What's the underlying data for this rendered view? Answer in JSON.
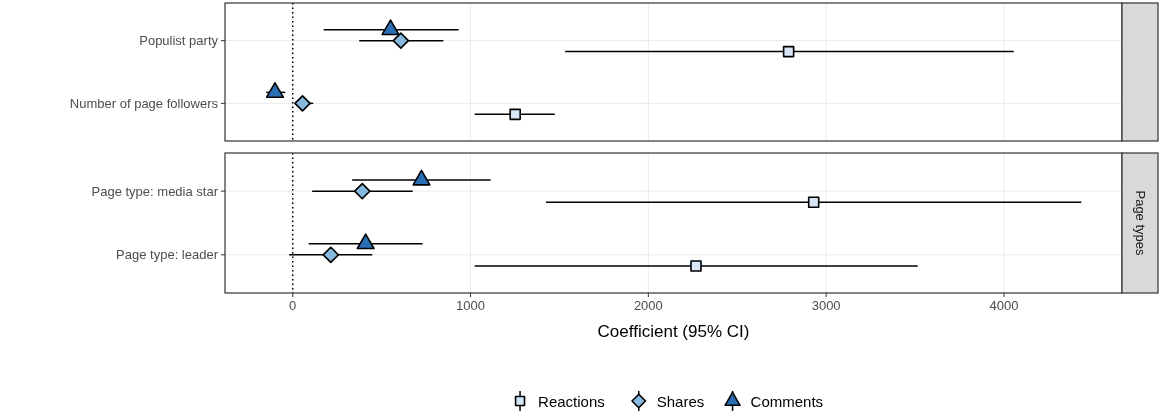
{
  "chart_data": [
    {
      "type": "scatter",
      "orientation": "horizontal",
      "categories": [
        "Populist party",
        "Number of page followers"
      ],
      "xlim": [
        -381,
        4664
      ],
      "xticks": [
        0,
        1000,
        2000,
        3000,
        4000
      ],
      "tick_labels": "y",
      "grid": true,
      "ref_lines": [
        {
          "axis": "x",
          "value": 0,
          "line_style": "dotted",
          "color": "#000000"
        }
      ],
      "series": [
        {
          "color": "#d6e6f4",
          "marker": "square",
          "values": [
            2789,
            1251
          ],
          "errors": [
            [
              1532,
              4055
            ],
            [
              1023,
              1474
            ]
          ]
        },
        {
          "color": "#86b9dd",
          "marker": "diamond",
          "values": [
            608,
            55
          ],
          "errors": [
            [
              374,
              847
            ],
            [
              12,
              115
            ]
          ]
        },
        {
          "color": "#2a6fb5",
          "marker": "triangle",
          "values": [
            550,
            -100
          ],
          "errors": [
            [
              174,
              933
            ],
            [
              -149,
              -42
            ]
          ]
        }
      ]
    },
    {
      "type": "scatter",
      "orientation": "horizontal",
      "annotations": [
        "Page types"
      ],
      "xlabel": "Coefficient (95% CI)",
      "categories": [
        "Page type: media star",
        "Page type: leader"
      ],
      "xlim": [
        -381,
        4664
      ],
      "xticks": [
        0,
        1000,
        2000,
        3000,
        4000
      ],
      "grid": true,
      "legend": "bottom",
      "ref_lines": [
        {
          "axis": "x",
          "value": 0,
          "line_style": "dotted",
          "color": "#000000"
        }
      ],
      "series": [
        {
          "name": "Reactions",
          "color": "#d6e6f4",
          "marker": "square",
          "values": [
            2930,
            2268
          ],
          "errors": [
            [
              1424,
              4435
            ],
            [
              1023,
              3515
            ]
          ]
        },
        {
          "name": "Shares",
          "color": "#86b9dd",
          "marker": "diamond",
          "values": [
            391,
            214
          ],
          "errors": [
            [
              109,
              675
            ],
            [
              -20,
              447
            ]
          ]
        },
        {
          "name": "Comments",
          "color": "#2a6fb5",
          "marker": "triangle",
          "values": [
            724,
            410
          ],
          "errors": [
            [
              334,
              1113
            ],
            [
              90,
              730
            ]
          ]
        }
      ]
    }
  ]
}
